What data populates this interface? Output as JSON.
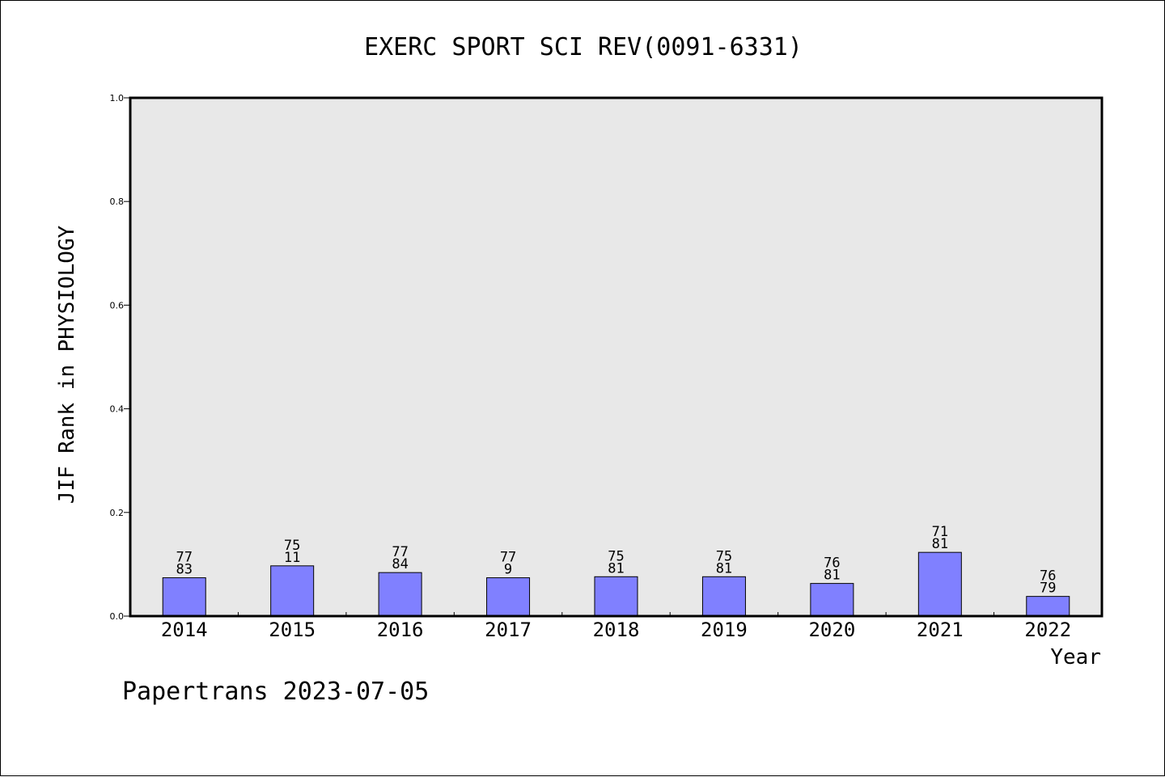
{
  "chart_data": {
    "type": "bar",
    "title": "EXERC SPORT SCI REV(0091-6331)",
    "xlabel": "Year",
    "ylabel": "JIF Rank in PHYSIOLOGY",
    "ylim": [
      0,
      1.0
    ],
    "yticks": [
      "0.0",
      "0.2",
      "0.4",
      "0.6",
      "0.8",
      "1.0"
    ],
    "grid": false,
    "plot_background": "#e8e8e8",
    "bar_color": "#8080ff",
    "categories": [
      "2014",
      "2015",
      "2016",
      "2017",
      "2018",
      "2019",
      "2020",
      "2021",
      "2022"
    ],
    "values": [
      0.074,
      0.097,
      0.084,
      0.074,
      0.076,
      0.076,
      0.063,
      0.123,
      0.038
    ],
    "label_top": [
      "77",
      "75",
      "77",
      "77",
      "75",
      "75",
      "76",
      "71",
      "76"
    ],
    "label_bottom": [
      "83",
      "11",
      "84",
      "9",
      "81",
      "81",
      "81",
      "81",
      "79"
    ]
  },
  "footer": "Papertrans 2023-07-05"
}
